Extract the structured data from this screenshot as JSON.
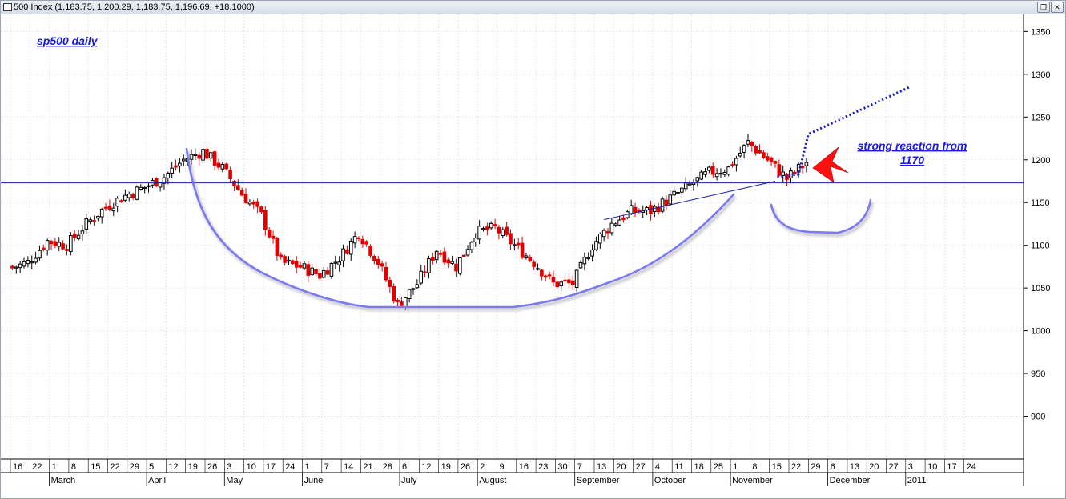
{
  "window": {
    "title": "500 Index (1,183.75, 1,200.29, 1,183.75, 1,196.69, +18.1000)",
    "restore_icon": "restore-window-icon",
    "close_icon": "close-window-icon"
  },
  "colors": {
    "up_candle": "#000000",
    "down_candle": "#e00000",
    "support_line": "#1a1aa0",
    "pattern_curve": "#7a7af0",
    "annotation": "#1a1ae6",
    "arrow": "#ff1010",
    "grid": "#cfd6df"
  },
  "chart_data": {
    "type": "candlestick",
    "title": "sp500 daily",
    "ylim": [
      850,
      1370
    ],
    "y_ticks": [
      900,
      950,
      1000,
      1050,
      1100,
      1150,
      1200,
      1250,
      1300,
      1350
    ],
    "support_level": 1173,
    "x_week_labels": [
      "16",
      "22",
      "1",
      "8",
      "15",
      "22",
      "29",
      "5",
      "12",
      "19",
      "26",
      "3",
      "10",
      "17",
      "24",
      "1",
      "7",
      "14",
      "21",
      "28",
      "6",
      "12",
      "19",
      "26",
      "2",
      "9",
      "16",
      "23",
      "30",
      "7",
      "13",
      "20",
      "27",
      "4",
      "11",
      "18",
      "25",
      "1",
      "8",
      "15",
      "22",
      "29",
      "6",
      "13",
      "20",
      "27",
      "3",
      "10",
      "17",
      "24"
    ],
    "x_month_labels": [
      {
        "label": "March",
        "week_index": 2
      },
      {
        "label": "April",
        "week_index": 7
      },
      {
        "label": "May",
        "week_index": 11
      },
      {
        "label": "June",
        "week_index": 15
      },
      {
        "label": "July",
        "week_index": 20
      },
      {
        "label": "August",
        "week_index": 24
      },
      {
        "label": "September",
        "week_index": 29
      },
      {
        "label": "October",
        "week_index": 33
      },
      {
        "label": "November",
        "week_index": 37
      },
      {
        "label": "December",
        "week_index": 42
      },
      {
        "label": "2011",
        "week_index": 46
      }
    ],
    "weekly_closes": [
      1080,
      1105,
      1100,
      1125,
      1145,
      1158,
      1168,
      1180,
      1200,
      1210,
      1190,
      1160,
      1135,
      1080,
      1075,
      1065,
      1085,
      1115,
      1080,
      1030,
      1055,
      1095,
      1075,
      1115,
      1120,
      1100,
      1080,
      1055,
      1055,
      1100,
      1125,
      1140,
      1140,
      1155,
      1170,
      1185,
      1190,
      1220,
      1200,
      1178,
      1197
    ],
    "trendline": {
      "from": {
        "week": 30.5,
        "value": 1130
      },
      "to": {
        "week": 39.3,
        "value": 1175
      }
    },
    "dotted_projection": [
      {
        "week": 39.4,
        "value": 1180
      },
      {
        "week": 40.5,
        "value": 1183
      },
      {
        "week": 41.0,
        "value": 1230
      },
      {
        "week": 46.2,
        "value": 1285
      }
    ],
    "annotation": {
      "lines": [
        "strong reaction from",
        "1170"
      ]
    }
  }
}
